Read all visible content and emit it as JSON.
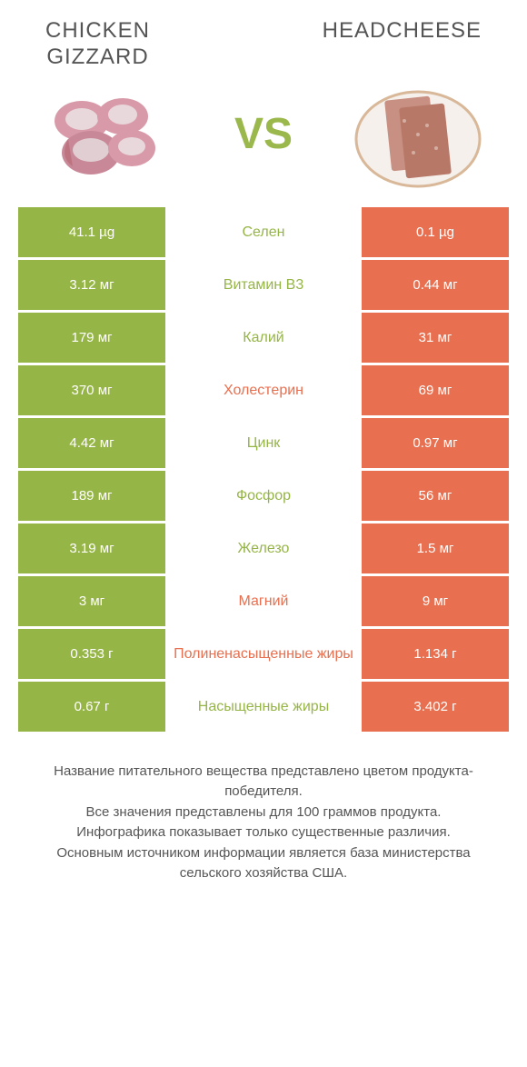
{
  "header": {
    "left_title_line1": "CHICKEN",
    "left_title_line2": "GIZZARD",
    "right_title": "HEADCHEESE",
    "vs_label": "VS"
  },
  "colors": {
    "green": "#96b547",
    "orange": "#e86f4f",
    "row_gap": "#ffffff"
  },
  "rows": [
    {
      "left": "41.1 µg",
      "mid": "Селен",
      "right": "0.1 µg",
      "winner": "left"
    },
    {
      "left": "3.12 мг",
      "mid": "Витамин B3",
      "right": "0.44 мг",
      "winner": "left"
    },
    {
      "left": "179 мг",
      "mid": "Калий",
      "right": "31 мг",
      "winner": "left"
    },
    {
      "left": "370 мг",
      "mid": "Холестерин",
      "right": "69 мг",
      "winner": "right"
    },
    {
      "left": "4.42 мг",
      "mid": "Цинк",
      "right": "0.97 мг",
      "winner": "left"
    },
    {
      "left": "189 мг",
      "mid": "Фосфор",
      "right": "56 мг",
      "winner": "left"
    },
    {
      "left": "3.19 мг",
      "mid": "Железо",
      "right": "1.5 мг",
      "winner": "left"
    },
    {
      "left": "3 мг",
      "mid": "Магний",
      "right": "9 мг",
      "winner": "right"
    },
    {
      "left": "0.353 г",
      "mid": "Полиненасыщенные жиры",
      "right": "1.134 г",
      "winner": "right"
    },
    {
      "left": "0.67 г",
      "mid": "Насыщенные жиры",
      "right": "3.402 г",
      "winner": "left"
    }
  ],
  "footer": {
    "line1": "Название питательного вещества представлено цветом продукта-победителя.",
    "line2": "Все значения представлены для 100 граммов продукта.",
    "line3": "Инфографика показывает только существенные различия.",
    "line4": "Основным источником информации является база министерства сельского хозяйства США."
  }
}
